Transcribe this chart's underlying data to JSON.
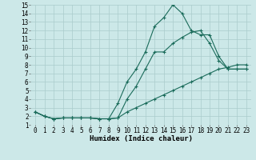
{
  "xlabel": "Humidex (Indice chaleur)",
  "bg_color": "#cce8e8",
  "grid_color": "#aacccc",
  "line_color": "#1a6b5a",
  "xlim": [
    -0.5,
    23.5
  ],
  "ylim": [
    1,
    15
  ],
  "xticks": [
    0,
    1,
    2,
    3,
    4,
    5,
    6,
    7,
    8,
    9,
    10,
    11,
    12,
    13,
    14,
    15,
    16,
    17,
    18,
    19,
    20,
    21,
    22,
    23
  ],
  "yticks": [
    1,
    2,
    3,
    4,
    5,
    6,
    7,
    8,
    9,
    10,
    11,
    12,
    13,
    14,
    15
  ],
  "line1_x": [
    0,
    1,
    2,
    3,
    4,
    5,
    6,
    7,
    8,
    9,
    10,
    11,
    12,
    13,
    14,
    15,
    16,
    17,
    18,
    19,
    20,
    21,
    22,
    23
  ],
  "line1_y": [
    2.5,
    2.0,
    1.7,
    1.8,
    1.8,
    1.8,
    1.8,
    1.7,
    1.7,
    1.8,
    4.0,
    5.5,
    7.5,
    9.5,
    9.5,
    10.5,
    11.2,
    11.8,
    12.0,
    10.5,
    8.5,
    7.5,
    7.5,
    7.5
  ],
  "line2_x": [
    0,
    1,
    2,
    3,
    4,
    5,
    6,
    7,
    8,
    9,
    10,
    11,
    12,
    13,
    14,
    15,
    16,
    17,
    18,
    19,
    20,
    21,
    22,
    23
  ],
  "line2_y": [
    2.5,
    2.0,
    1.7,
    1.8,
    1.8,
    1.8,
    1.8,
    1.7,
    1.7,
    3.5,
    6.0,
    7.5,
    9.5,
    12.5,
    13.5,
    15.0,
    14.0,
    12.0,
    11.5,
    11.5,
    9.0,
    7.5,
    7.5,
    7.5
  ],
  "line3_x": [
    0,
    1,
    2,
    3,
    4,
    5,
    6,
    7,
    8,
    9,
    10,
    11,
    12,
    13,
    14,
    15,
    16,
    17,
    18,
    19,
    20,
    21,
    22,
    23
  ],
  "line3_y": [
    2.5,
    2.0,
    1.7,
    1.8,
    1.8,
    1.8,
    1.8,
    1.7,
    1.7,
    1.8,
    2.5,
    3.0,
    3.5,
    4.0,
    4.5,
    5.0,
    5.5,
    6.0,
    6.5,
    7.0,
    7.5,
    7.7,
    8.0,
    8.0
  ],
  "tick_fontsize": 5.5,
  "label_fontsize": 6.5
}
